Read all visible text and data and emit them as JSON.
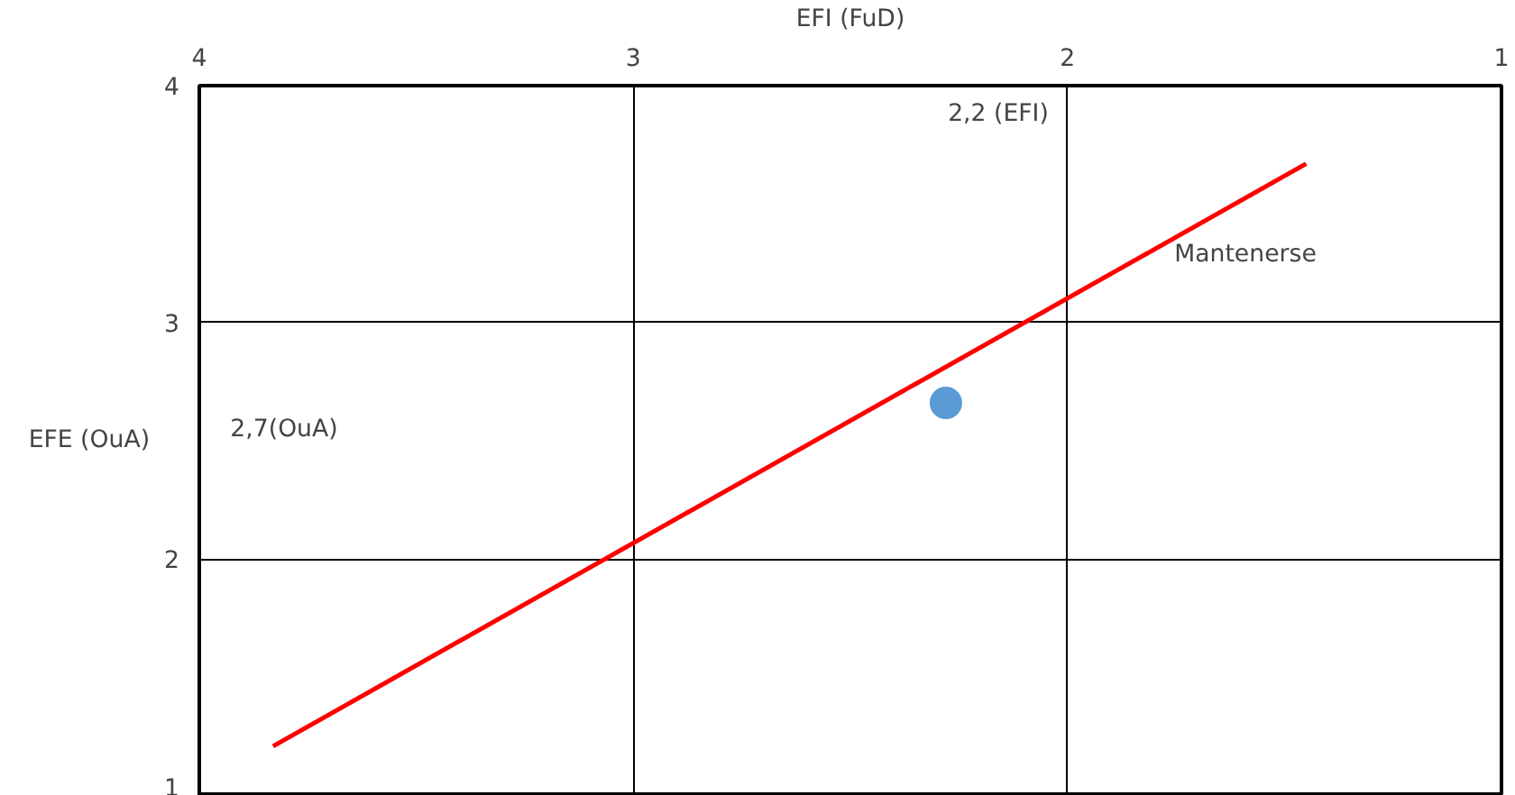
{
  "chart_data": {
    "type": "scatter",
    "xlabel": "EFI (FuD)",
    "ylabel": "EFE (OuA)",
    "xlim": [
      4,
      1
    ],
    "ylim": [
      1,
      4
    ],
    "xticks": [
      4,
      3,
      2,
      1
    ],
    "yticks": [
      4,
      3,
      2,
      1
    ],
    "grid": true,
    "series": [
      {
        "color": "#5b9bd5",
        "marker": "circle",
        "x": [
          2.28
        ],
        "values": [
          2.66
        ]
      },
      {
        "type": "line",
        "color": "#ff0000",
        "x": [
          3.83,
          1.45
        ],
        "values": [
          1.21,
          3.67
        ]
      }
    ],
    "annotations": [
      "2,2 (EFI)",
      "2,7(OuA)",
      "Mantenerse"
    ]
  }
}
